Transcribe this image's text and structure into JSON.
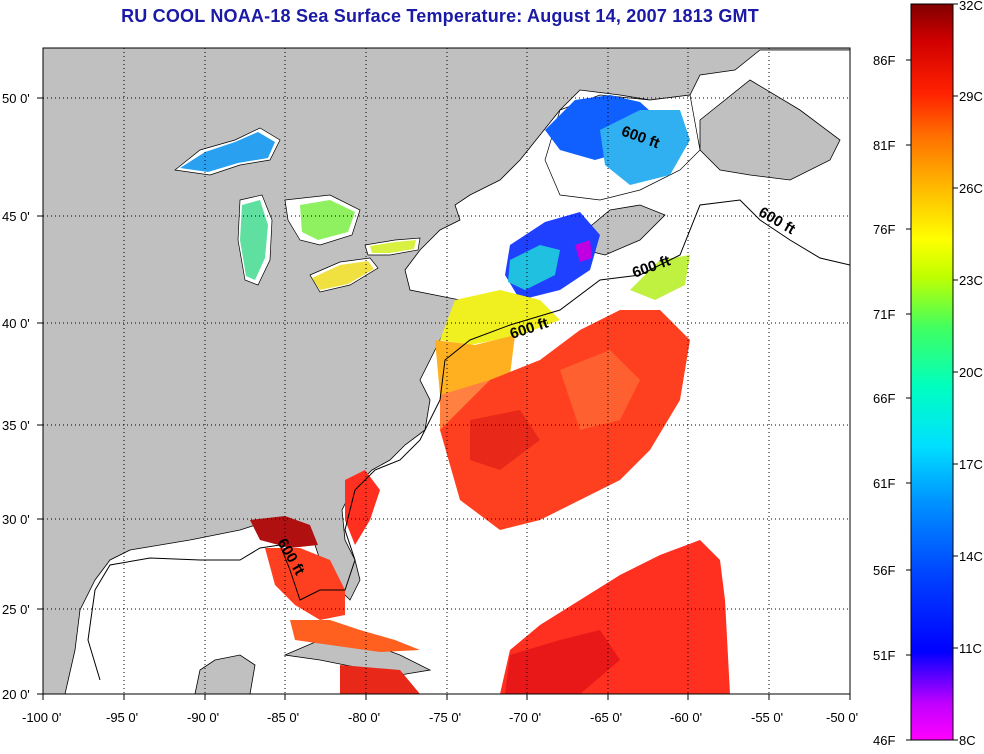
{
  "title": "RU COOL  NOAA-18  Sea Surface Temperature:  August 14, 2007 1813 GMT",
  "map": {
    "lon_labels": [
      "-100 0'",
      "-95 0'",
      "-90 0'",
      "-85 0'",
      "-80 0'",
      "-75 0'",
      "-70 0'",
      "-65 0'",
      "-60 0'",
      "-55 0'",
      "-50 0'"
    ],
    "lat_labels": [
      "50 0'",
      "45 0'",
      "40 0'",
      "35 0'",
      "30 0'",
      "25 0'",
      "20 0'"
    ],
    "lon_range": [
      -100,
      -50
    ],
    "lat_range": [
      20,
      52.5
    ],
    "grid": "dotted",
    "isobath_labels": [
      "600 ft",
      "600 ft",
      "600 ft",
      "600 ft",
      "600 ft"
    ],
    "colors": {
      "land": "#c0c0c0",
      "no_data": "#ffffff",
      "title": "#1a1aa6"
    }
  },
  "colorbar": {
    "fahrenheit_labels": [
      "86F",
      "81F",
      "76F",
      "71F",
      "66F",
      "61F",
      "56F",
      "51F",
      "46F"
    ],
    "celsius_labels": [
      "32C",
      "29C",
      "26C",
      "23C",
      "20C",
      "17C",
      "14C",
      "11C",
      "8C"
    ],
    "range_c": [
      8,
      32
    ],
    "colormap": [
      "#8b0000",
      "#ff1a00",
      "#ff8c00",
      "#ffff00",
      "#00ff80",
      "#00ffff",
      "#0080ff",
      "#0000ff",
      "#ff00ff"
    ]
  }
}
